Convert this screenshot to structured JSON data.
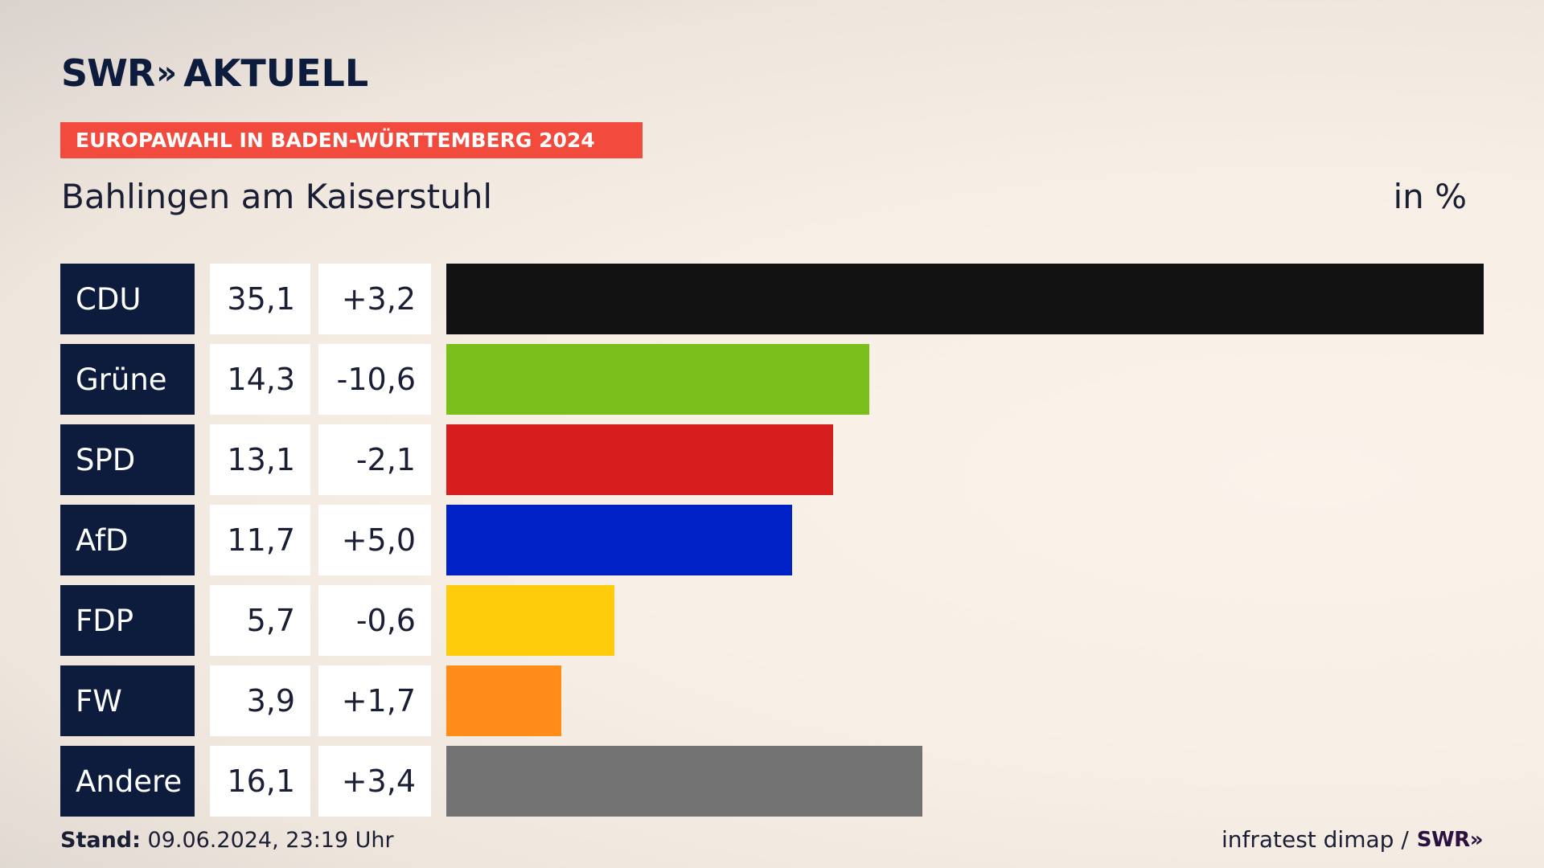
{
  "logo": {
    "brand": "SWR",
    "chevrons": "»",
    "name": "AKTUELL"
  },
  "banner": "EUROPAWAHL IN BADEN-WÜRTTEMBERG 2024",
  "subtitle": "Bahlingen am Kaiserstuhl",
  "unit_label": "in %",
  "footer": {
    "stand_label": "Stand:",
    "stand_value": "09.06.2024, 23:19 Uhr",
    "source": "infratest dimap /",
    "source_logo": "SWR»"
  },
  "chart_data": {
    "type": "bar",
    "orientation": "horizontal",
    "xlim": [
      0,
      35.1
    ],
    "rows": [
      {
        "party": "CDU",
        "value": 35.1,
        "value_label": "35,1",
        "diff_label": "+3,2",
        "color": "#121212"
      },
      {
        "party": "Grüne",
        "value": 14.3,
        "value_label": "14,3",
        "diff_label": "-10,6",
        "color": "#7bbf1c"
      },
      {
        "party": "SPD",
        "value": 13.1,
        "value_label": "13,1",
        "diff_label": "-2,1",
        "color": "#d61e1e"
      },
      {
        "party": "AfD",
        "value": 11.7,
        "value_label": "11,7",
        "diff_label": "+5,0",
        "color": "#0021c6"
      },
      {
        "party": "FDP",
        "value": 5.7,
        "value_label": "5,7",
        "diff_label": "-0,6",
        "color": "#ffcc0b"
      },
      {
        "party": "FW",
        "value": 3.9,
        "value_label": "3,9",
        "diff_label": "+1,7",
        "color": "#ff8d17"
      },
      {
        "party": "Andere",
        "value": 16.1,
        "value_label": "16,1",
        "diff_label": "+3,4",
        "color": "#727272"
      }
    ]
  }
}
